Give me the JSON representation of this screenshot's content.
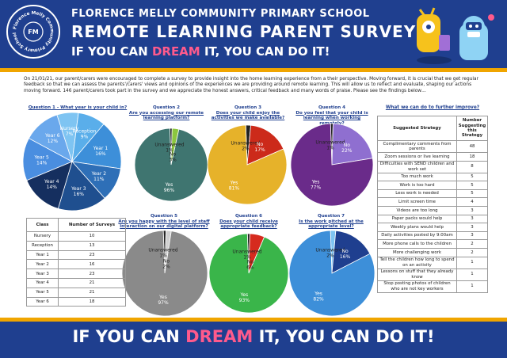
{
  "header": {
    "logo_text": "Florence Melly Community Primary School",
    "school_name": "FLORENCE MELLY COMMUNITY PRIMARY SCHOOL",
    "survey_title": "REMOTE LEARNING PARENT SURVEY",
    "motto_pre": "IF YOU CAN ",
    "motto_dream": "DREAM",
    "motto_post": " IT, YOU CAN DO IT!"
  },
  "intro": "On 21/01/21, our parent/carers were encouraged to complete a survey to provide insight into the home learning experience from a their perspective. Moving forward, it is crucial that we get regular feedback so that we can assess the parents'/carers' views and opinions of the experiences we are providing around remote learning. This will allow us to reflect and evaluate, shaping our actions moving forward. 146 parent/carers took part in the survey and we appreciate the honest answers, critical feedback and many words of praise. Please see the findings below…",
  "questions": [
    {
      "title": "Question 1 - What year is your child in?"
    },
    {
      "title": "Question 2",
      "sub": "Are you accessing our remote learning platform?"
    },
    {
      "title": "Question 3",
      "sub": "Does your child enjoy the activities we make available?"
    },
    {
      "title": "Question 4",
      "sub": "Do you feel that your child is learning when working remotely?"
    },
    {
      "title": "Question 5",
      "sub": "Are you happy with the level of staff interaction on our digital platform?"
    },
    {
      "title": "Question 6",
      "sub": "Does your child receive appropriate feedback?"
    },
    {
      "title": "Question 7",
      "sub": "Is the work pitched at the appropriate level?"
    }
  ],
  "class_table": {
    "headers": [
      "Class",
      "Number of Surveys"
    ],
    "rows": [
      [
        "Nursery",
        "10"
      ],
      [
        "Reception",
        "13"
      ],
      [
        "Year 1",
        "23"
      ],
      [
        "Year 2",
        "16"
      ],
      [
        "Year 3",
        "23"
      ],
      [
        "Year 4",
        "21"
      ],
      [
        "Year 5",
        "21"
      ],
      [
        "Year 6",
        "18"
      ]
    ]
  },
  "improve": {
    "title": "What we can do to further improve?",
    "headers": [
      "Suggested Strategy",
      "Number Suggesting this Strategy"
    ],
    "rows": [
      [
        "Complimentary comments from parents",
        "48"
      ],
      [
        "Zoom sessions or live learning",
        "18"
      ],
      [
        "Difficulties with SEND children and work set",
        "8"
      ],
      [
        "Too much work",
        "5"
      ],
      [
        "Work is too hard",
        "5"
      ],
      [
        "Less work is needed",
        "5"
      ],
      [
        "Limit screen time",
        "4"
      ],
      [
        "Videos are too long",
        "3"
      ],
      [
        "Paper packs would help",
        "3"
      ],
      [
        "Weekly plans would help",
        "3"
      ],
      [
        "Daily activities posted by 9:00am",
        "3"
      ],
      [
        "More phone calls to the children",
        "2"
      ],
      [
        "More challenging work",
        "2"
      ],
      [
        "Tell the children how long to spend on an activity",
        "1"
      ],
      [
        "Lessons on stuff that they already know",
        "1"
      ],
      [
        "Stop posting photos of children who are not key workers",
        "1"
      ]
    ]
  },
  "chart_data": [
    {
      "type": "pie",
      "title": "Question 1 - What year is your child in?",
      "labels": [
        "Nursery",
        "Reception",
        "Year 1",
        "Year 2",
        "Year 3",
        "Year 4",
        "Year 5",
        "Year 6"
      ],
      "values": [
        7,
        9,
        16,
        11,
        16,
        14,
        14,
        12
      ],
      "display": [
        "Nursery\n7%",
        "Reception\n9%",
        "Year 1\n16%",
        "Year 2\n11%",
        "Year 3\n16%",
        "Year 4\n14%",
        "Year 5\n14%",
        "Year 6\n12%"
      ],
      "colors": [
        "#7ec4f2",
        "#5aaeea",
        "#3d8fd9",
        "#2e6fb7",
        "#1f4f8f",
        "#152f5f",
        "#4a8ee0",
        "#6aa8ec"
      ]
    },
    {
      "type": "pie",
      "title": "Are you accessing our remote learning platform?",
      "labels": [
        "Yes",
        "Unanswered",
        "No"
      ],
      "values": [
        96,
        1,
        3
      ],
      "display": [
        "Yes\n96%",
        "Unanswered\n1%",
        "No\n3%"
      ],
      "colors": [
        "#3f7570",
        "#222222",
        "#8cc63f"
      ]
    },
    {
      "type": "pie",
      "title": "Does your child enjoy the activities we make available?",
      "labels": [
        "Yes",
        "Unanswered",
        "No"
      ],
      "values": [
        81,
        2,
        17
      ],
      "display": [
        "Yes\n81%",
        "Unanswered\n2%",
        "No\n17%"
      ],
      "colors": [
        "#e6b22a",
        "#222222",
        "#cc2a1a"
      ]
    },
    {
      "type": "pie",
      "title": "Do you feel that your child is learning when working remotely?",
      "labels": [
        "Yes",
        "Unanswered",
        "No"
      ],
      "values": [
        77,
        1,
        22
      ],
      "display": [
        "Yes\n77%",
        "Unanswered\n1%",
        "No\n22%"
      ],
      "colors": [
        "#6a2b8a",
        "#222222",
        "#8f6fd0"
      ]
    },
    {
      "type": "pie",
      "title": "Are you happy with the level of staff interaction on our digital platform?",
      "labels": [
        "Yes",
        "Unanswered",
        "No"
      ],
      "values": [
        97,
        1,
        2
      ],
      "display": [
        "Yes\n97%",
        "Unanswered\n1%",
        "No\n2%"
      ],
      "colors": [
        "#8a8a8a",
        "#222222",
        "#d0d0d0"
      ]
    },
    {
      "type": "pie",
      "title": "Does your child receive appropriate feedback?",
      "labels": [
        "Yes",
        "Unanswered",
        "No"
      ],
      "values": [
        93,
        1,
        6
      ],
      "display": [
        "Yes\n93%",
        "Unanswered\n1%",
        "No\n6%"
      ],
      "colors": [
        "#3ab54a",
        "#222222",
        "#d62b1e"
      ]
    },
    {
      "type": "pie",
      "title": "Is the work pitched at the appropriate level?",
      "labels": [
        "Yes",
        "Unanswered",
        "No"
      ],
      "values": [
        82,
        2,
        16
      ],
      "display": [
        "Yes\n82%",
        "Unanswered\n2%",
        "No\n16%"
      ],
      "colors": [
        "#3d8fd9",
        "#7ec4f2",
        "#1f3f8f"
      ]
    }
  ]
}
